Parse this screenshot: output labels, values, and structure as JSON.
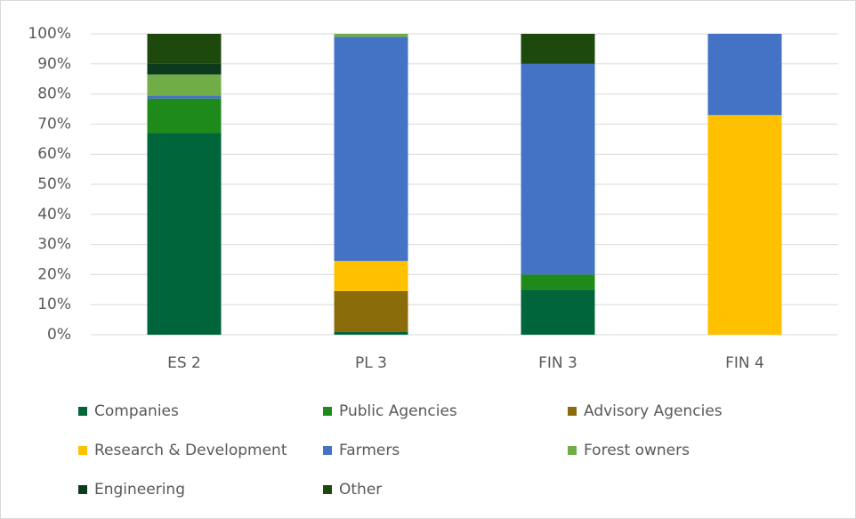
{
  "chart_data": {
    "type": "stacked_bar",
    "categories": [
      "ES 2",
      "PL 3",
      "FIN 3",
      "FIN 4"
    ],
    "series": [
      {
        "name": "Companies",
        "color": "#00653b",
        "values": [
          67,
          1,
          15,
          0
        ]
      },
      {
        "name": "Public Agencies",
        "color": "#1f8a1c",
        "values": [
          11.5,
          0,
          5,
          0
        ]
      },
      {
        "name": "Advisory Agencies",
        "color": "#8b6c0a",
        "values": [
          0,
          13.5,
          0,
          0
        ]
      },
      {
        "name": "Research & Development",
        "color": "#ffc000",
        "values": [
          0,
          10,
          0,
          73
        ]
      },
      {
        "name": "Farmers",
        "color": "#4472c4",
        "values": [
          1,
          74.5,
          70,
          27
        ]
      },
      {
        "name": "Forest owners",
        "color": "#70ad47",
        "values": [
          7,
          1,
          0,
          0
        ]
      },
      {
        "name": "Engineering",
        "color": "#0b3a1c",
        "values": [
          3.5,
          0,
          0,
          0
        ]
      },
      {
        "name": "Other",
        "color": "#1d4a0c",
        "values": [
          10,
          0,
          10,
          0
        ]
      }
    ],
    "ylim": [
      0,
      100
    ],
    "yticks": [
      {
        "value": 0,
        "label": "0%"
      },
      {
        "value": 10,
        "label": "10%"
      },
      {
        "value": 20,
        "label": "20%"
      },
      {
        "value": 30,
        "label": "30%"
      },
      {
        "value": 40,
        "label": "40%"
      },
      {
        "value": 50,
        "label": "50%"
      },
      {
        "value": 60,
        "label": "60%"
      },
      {
        "value": 70,
        "label": "70%"
      },
      {
        "value": 80,
        "label": "80%"
      },
      {
        "value": 90,
        "label": "90%"
      },
      {
        "value": 100,
        "label": "100%"
      }
    ],
    "grid": true,
    "legend": "bottom"
  }
}
